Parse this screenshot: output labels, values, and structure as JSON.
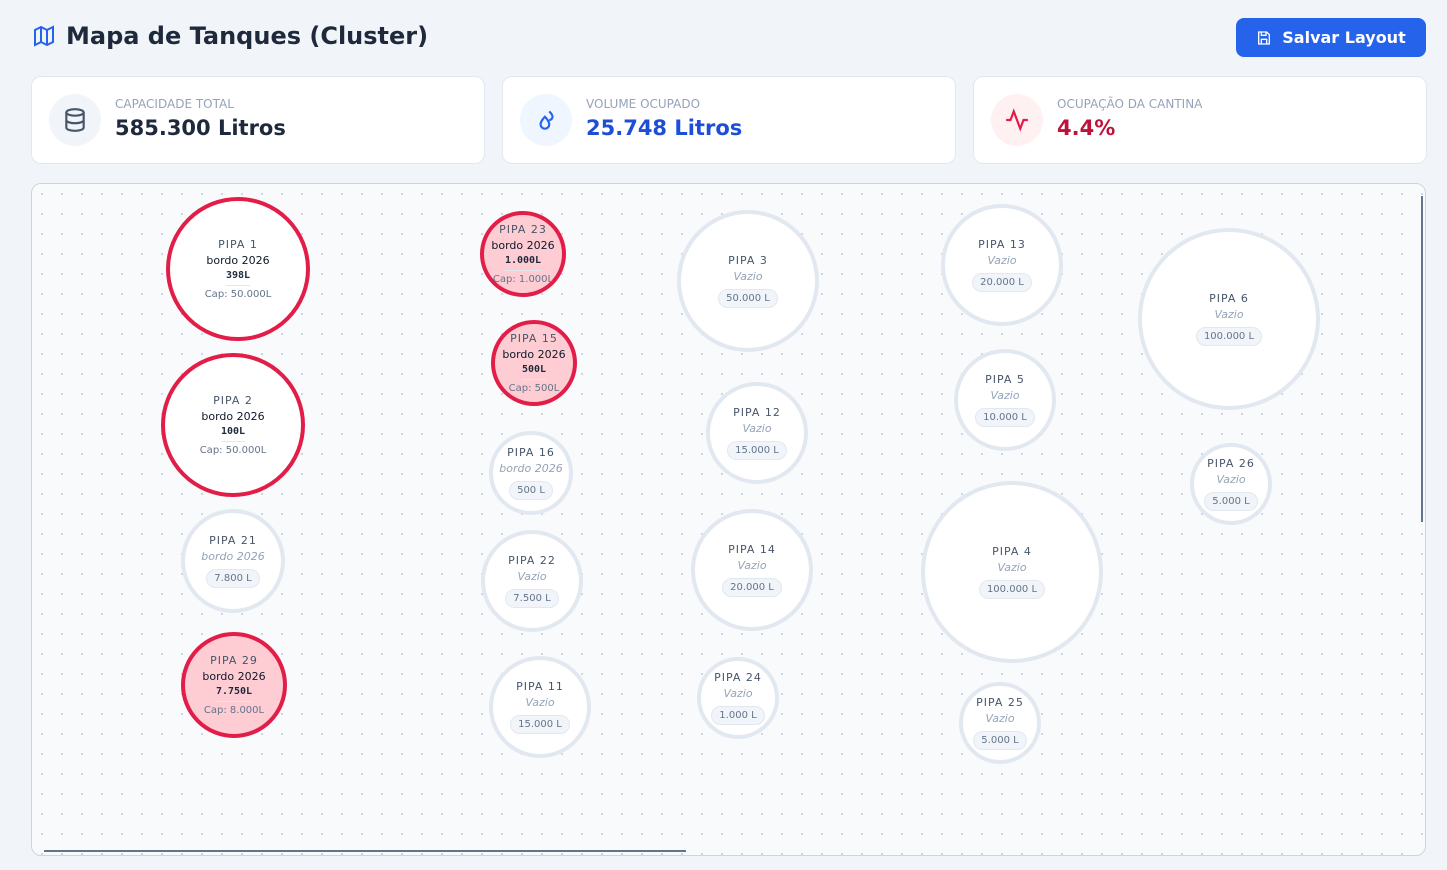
{
  "header": {
    "title": "Mapa de Tanques (Cluster)",
    "button": "Salvar Layout"
  },
  "stats": [
    {
      "label": "CAPACIDADE TOTAL",
      "value": "585.300 Litros"
    },
    {
      "label": "VOLUME OCUPADO",
      "value": "25.748 Litros"
    },
    {
      "label": "OCUPAÇÃO DA CANTINA",
      "value": "4.4%"
    }
  ],
  "tanks": [
    {
      "name": "PIPA 1",
      "content": "bordo 2026",
      "volume": "398L",
      "capacity": "Cap: 50.000L"
    },
    {
      "name": "PIPA 2",
      "content": "bordo 2026",
      "volume": "100L",
      "capacity": "Cap: 50.000L"
    },
    {
      "name": "PIPA 21",
      "content": "bordo 2026",
      "capacity": "7.800 L"
    },
    {
      "name": "PIPA 29",
      "content": "bordo 2026",
      "volume": "7.750L",
      "capacity": "Cap: 8.000L"
    },
    {
      "name": "PIPA 23",
      "content": "bordo 2026",
      "volume": "1.000L",
      "capacity": "Cap: 1.000L"
    },
    {
      "name": "PIPA 15",
      "content": "bordo 2026",
      "volume": "500L",
      "capacity": "Cap: 500L"
    },
    {
      "name": "PIPA 16",
      "content": "bordo 2026",
      "capacity": "500 L"
    },
    {
      "name": "PIPA 22",
      "content": "Vazio",
      "capacity": "7.500 L"
    },
    {
      "name": "PIPA 11",
      "content": "Vazio",
      "capacity": "15.000 L"
    },
    {
      "name": "PIPA 3",
      "content": "Vazio",
      "capacity": "50.000 L"
    },
    {
      "name": "PIPA 12",
      "content": "Vazio",
      "capacity": "15.000 L"
    },
    {
      "name": "PIPA 14",
      "content": "Vazio",
      "capacity": "20.000 L"
    },
    {
      "name": "PIPA 24",
      "content": "Vazio",
      "capacity": "1.000 L"
    },
    {
      "name": "PIPA 13",
      "content": "Vazio",
      "capacity": "20.000 L"
    },
    {
      "name": "PIPA 5",
      "content": "Vazio",
      "capacity": "10.000 L"
    },
    {
      "name": "PIPA 4",
      "content": "Vazio",
      "capacity": "100.000 L"
    },
    {
      "name": "PIPA 25",
      "content": "Vazio",
      "capacity": "5.000 L"
    },
    {
      "name": "PIPA 6",
      "content": "Vazio",
      "capacity": "100.000 L"
    },
    {
      "name": "PIPA 26",
      "content": "Vazio",
      "capacity": "5.000 L"
    }
  ]
}
